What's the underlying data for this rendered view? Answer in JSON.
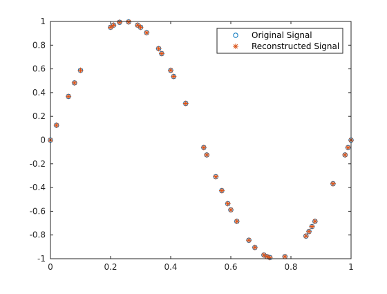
{
  "chart_data": {
    "type": "scatter",
    "title": "",
    "xlabel": "",
    "ylabel": "",
    "xlim": [
      0,
      1
    ],
    "ylim": [
      -1,
      1
    ],
    "x_ticks": [
      "0",
      "0.2",
      "0.4",
      "0.6",
      "0.8",
      "1"
    ],
    "y_ticks": [
      "1",
      "0.8",
      "0.6",
      "0.4",
      "0.2",
      "0",
      "-0.2",
      "-0.4",
      "-0.6",
      "-0.8",
      "-1"
    ],
    "grid": false,
    "legend_placement": "top-right",
    "x": [
      0.0,
      0.02,
      0.06,
      0.08,
      0.1,
      0.2,
      0.21,
      0.23,
      0.26,
      0.29,
      0.3,
      0.32,
      0.36,
      0.37,
      0.4,
      0.41,
      0.45,
      0.51,
      0.52,
      0.55,
      0.57,
      0.59,
      0.6,
      0.62,
      0.66,
      0.68,
      0.71,
      0.72,
      0.73,
      0.78,
      0.85,
      0.86,
      0.87,
      0.88,
      0.94,
      0.98,
      0.99,
      1.0
    ],
    "series": [
      {
        "name": "Original Signal",
        "marker": "circle",
        "color": "#0072BD",
        "values": [
          0.0,
          0.125,
          0.368,
          0.482,
          0.588,
          0.951,
          0.969,
          0.993,
          0.996,
          0.969,
          0.951,
          0.905,
          0.771,
          0.729,
          0.588,
          0.536,
          0.309,
          -0.063,
          -0.125,
          -0.309,
          -0.426,
          -0.536,
          -0.588,
          -0.685,
          -0.844,
          -0.905,
          -0.969,
          -0.982,
          -0.99,
          -0.982,
          -0.809,
          -0.771,
          -0.729,
          -0.685,
          -0.368,
          -0.125,
          -0.063,
          0.0
        ]
      },
      {
        "name": "Reconstructed Signal",
        "marker": "asterisk",
        "color": "#D95319",
        "values": [
          0.0,
          0.125,
          0.368,
          0.482,
          0.588,
          0.951,
          0.969,
          0.993,
          0.996,
          0.969,
          0.951,
          0.905,
          0.771,
          0.729,
          0.588,
          0.536,
          0.309,
          -0.063,
          -0.125,
          -0.309,
          -0.426,
          -0.536,
          -0.588,
          -0.685,
          -0.844,
          -0.905,
          -0.969,
          -0.982,
          -0.99,
          -0.982,
          -0.809,
          -0.771,
          -0.729,
          -0.685,
          -0.368,
          -0.125,
          -0.063,
          0.0
        ]
      }
    ]
  }
}
